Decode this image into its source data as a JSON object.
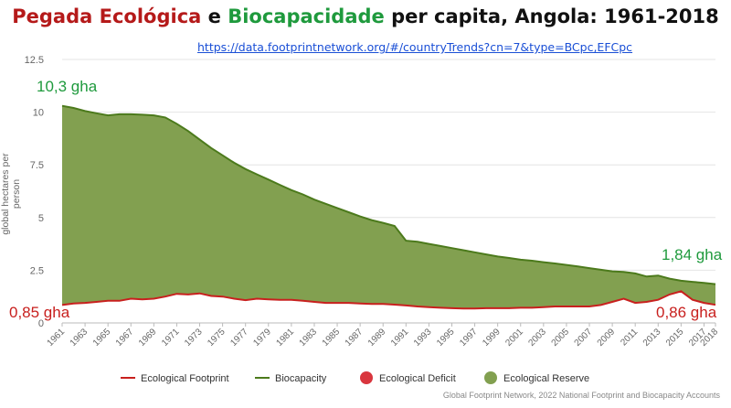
{
  "header": {
    "title_part1": "Pegada Ecológica",
    "title_part2": " e ",
    "title_part3": "Biocapacidade",
    "title_part4": " per capita, Angola: 1961-2018",
    "url": "https://data.footprintnetwork.org/#/countryTrends?cn=7&type=BCpc,EFCpc"
  },
  "annotations": {
    "bio_start": "10,3 gha",
    "bio_end": "1,84 gha",
    "ef_start": "0,85 gha",
    "ef_end": "0,86 gha"
  },
  "source": "Global Footprint Network, 2022 National Footprint and Biocapacity Accounts",
  "colors": {
    "footprint": "#c8201e",
    "biocapacity": "#4c7a1c",
    "reserve_fill": "#82a050",
    "deficit": "#d9363e",
    "title_red": "#b51a1a",
    "title_green": "#1f9a3d"
  },
  "chart_data": {
    "type": "area",
    "ylabel": "global hectares per person",
    "xlabel": "",
    "ylim": [
      0,
      12.5
    ],
    "yticks": [
      "0",
      "2.5",
      "5",
      "7.5",
      "10",
      "12.5"
    ],
    "ytick_values": [
      0,
      2.5,
      5,
      7.5,
      10,
      12.5
    ],
    "grid": true,
    "legend_position": "bottom",
    "x": [
      1961,
      1962,
      1963,
      1964,
      1965,
      1966,
      1967,
      1968,
      1969,
      1970,
      1971,
      1972,
      1973,
      1974,
      1975,
      1976,
      1977,
      1978,
      1979,
      1980,
      1981,
      1982,
      1983,
      1984,
      1985,
      1986,
      1987,
      1988,
      1989,
      1990,
      1991,
      1992,
      1993,
      1994,
      1995,
      1996,
      1997,
      1998,
      1999,
      2000,
      2001,
      2002,
      2003,
      2004,
      2005,
      2006,
      2007,
      2008,
      2009,
      2010,
      2011,
      2012,
      2013,
      2014,
      2015,
      2016,
      2017,
      2018
    ],
    "xticks": [
      "1961",
      "1963",
      "1965",
      "1967",
      "1969",
      "1971",
      "1973",
      "1975",
      "1977",
      "1979",
      "1981",
      "1983",
      "1985",
      "1987",
      "1989",
      "1991",
      "1993",
      "1995",
      "1997",
      "1999",
      "2001",
      "2003",
      "2005",
      "2007",
      "2009",
      "2011",
      "2013",
      "2015",
      "2017",
      "2018"
    ],
    "series": [
      {
        "name": "Ecological Footprint",
        "values": [
          0.85,
          0.92,
          0.95,
          1.0,
          1.05,
          1.05,
          1.15,
          1.12,
          1.15,
          1.25,
          1.38,
          1.35,
          1.4,
          1.28,
          1.25,
          1.15,
          1.08,
          1.15,
          1.12,
          1.1,
          1.1,
          1.05,
          1.0,
          0.95,
          0.95,
          0.95,
          0.92,
          0.9,
          0.9,
          0.87,
          0.83,
          0.78,
          0.75,
          0.72,
          0.7,
          0.68,
          0.68,
          0.7,
          0.7,
          0.7,
          0.72,
          0.72,
          0.75,
          0.78,
          0.78,
          0.78,
          0.78,
          0.85,
          1.0,
          1.15,
          0.95,
          1.0,
          1.1,
          1.35,
          1.5,
          1.1,
          0.95,
          0.86
        ]
      },
      {
        "name": "Biocapacity",
        "values": [
          10.3,
          10.2,
          10.05,
          9.95,
          9.85,
          9.9,
          9.9,
          9.88,
          9.85,
          9.75,
          9.45,
          9.1,
          8.7,
          8.3,
          7.95,
          7.6,
          7.3,
          7.05,
          6.8,
          6.55,
          6.3,
          6.1,
          5.85,
          5.65,
          5.45,
          5.25,
          5.05,
          4.88,
          4.75,
          4.6,
          3.9,
          3.85,
          3.75,
          3.65,
          3.55,
          3.45,
          3.35,
          3.25,
          3.15,
          3.08,
          3.0,
          2.95,
          2.88,
          2.82,
          2.75,
          2.68,
          2.6,
          2.52,
          2.45,
          2.42,
          2.35,
          2.2,
          2.25,
          2.1,
          2.0,
          1.95,
          1.9,
          1.84
        ]
      }
    ],
    "legend": [
      "Ecological Footprint",
      "Biocapacity",
      "Ecological Deficit",
      "Ecological Reserve"
    ]
  }
}
